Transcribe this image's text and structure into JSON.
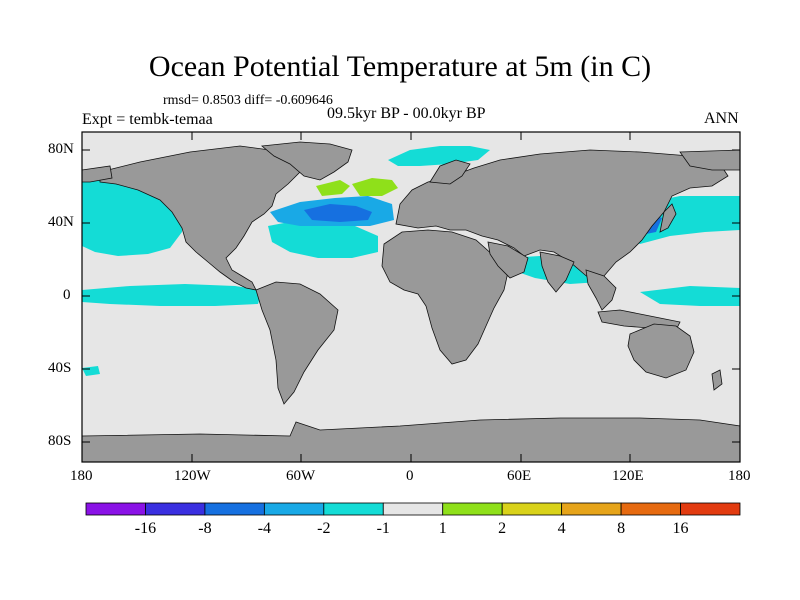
{
  "title": "Ocean Potential Temperature at 5m (in C)",
  "stats": "rmsd= 0.8503  diff= -0.609646",
  "experiment": "Expt = tembk-temaa",
  "period": "09.5kyr BP - 00.0kyr BP",
  "season": "ANN",
  "lat_labels": [
    "80N",
    "40N",
    "0",
    "40S",
    "80S"
  ],
  "lon_labels": [
    "180",
    "120W",
    "60W",
    "0",
    "60E",
    "120E",
    "180"
  ],
  "colorbar": {
    "labels": [
      "-16",
      "-8",
      "-4",
      "-2",
      "-1",
      "1",
      "2",
      "4",
      "8",
      "16"
    ],
    "colors": [
      "#8a12e6",
      "#3a2fe0",
      "#1670e0",
      "#19a9e6",
      "#14dcd6",
      "#e6e6e6",
      "#8fe01a",
      "#d9d21a",
      "#e6a41a",
      "#e66a10",
      "#e23b10"
    ]
  },
  "colors": {
    "land": "#999999",
    "ocean_neutral": "#e6e6e6",
    "cool_light": "#14dcd6",
    "cool_mid": "#19a9e6",
    "cool_strong": "#1670e0",
    "warm_light": "#8fe01a"
  }
}
